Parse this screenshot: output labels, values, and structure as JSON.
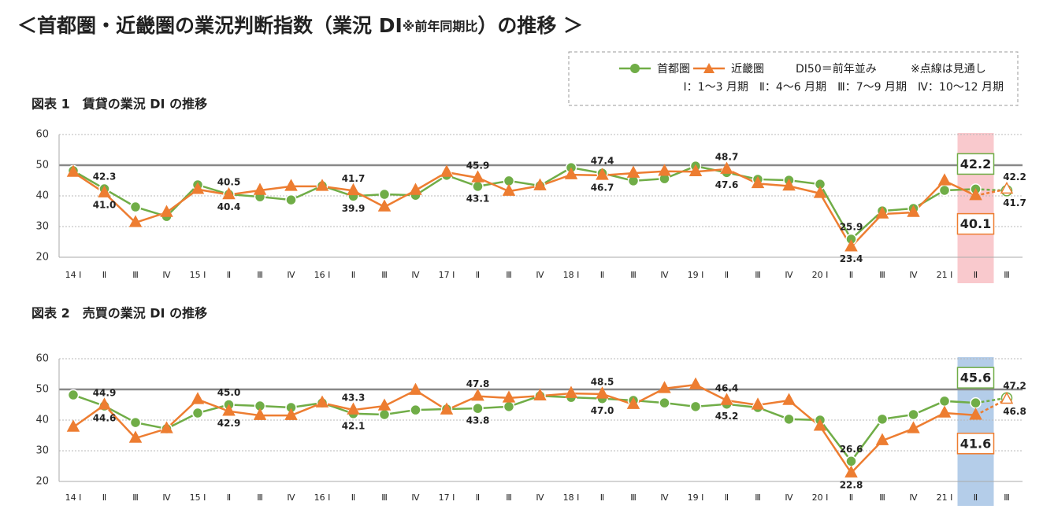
{
  "title_parts": [
    "＜首都圏・近畿圏の業況判断指数（業況 DI",
    "※前年同期比",
    "）の推移 ＞"
  ],
  "legend_notes": [
    "DI50＝前年並み",
    "※点線は見通し",
    "Ⅰ：1〜3 月期　Ⅱ：4〜6 月期　Ⅲ：7〜9 月期　Ⅳ：10〜12 月期"
  ],
  "chart_data": [
    {
      "type": "line",
      "title": "図表 1　賃貸の業況 DI の推移",
      "categories": [
        "14 Ⅰ",
        "Ⅱ",
        "Ⅲ",
        "Ⅳ",
        "15 Ⅰ",
        "Ⅱ",
        "Ⅲ",
        "Ⅳ",
        "16 Ⅰ",
        "Ⅱ",
        "Ⅲ",
        "Ⅳ",
        "17 Ⅰ",
        "Ⅱ",
        "Ⅲ",
        "Ⅳ",
        "18 Ⅰ",
        "Ⅱ",
        "Ⅲ",
        "Ⅳ",
        "19 Ⅰ",
        "Ⅱ",
        "Ⅲ",
        "Ⅳ",
        "20 Ⅰ",
        "Ⅱ",
        "Ⅲ",
        "Ⅳ",
        "21 Ⅰ",
        "Ⅱ",
        "Ⅲ"
      ],
      "ylim": [
        20,
        60
      ],
      "yticks": [
        20,
        30,
        40,
        50,
        60
      ],
      "grid": true,
      "reference_line": 50,
      "highlight": 29,
      "highlight_color": "#f9c9cd",
      "forecast_from": 29,
      "series": [
        {
          "name": "首都圏",
          "color": "#70ad47",
          "marker": "circle",
          "values": [
            48.2,
            42.3,
            36.4,
            33.3,
            43.6,
            40.5,
            39.7,
            38.7,
            43.3,
            39.9,
            40.5,
            40.2,
            46.7,
            43.1,
            44.9,
            43.3,
            49.2,
            47.4,
            44.9,
            45.6,
            49.7,
            47.6,
            45.4,
            45.1,
            43.8,
            25.9,
            35.1,
            35.9,
            41.8,
            42.2,
            41.7
          ],
          "value_labels": [
            null,
            "42.3",
            null,
            null,
            null,
            "40.5",
            null,
            null,
            null,
            "39.9",
            null,
            null,
            null,
            "43.1",
            null,
            null,
            null,
            "47.4",
            null,
            null,
            null,
            "47.6",
            null,
            null,
            null,
            "25.9",
            null,
            null,
            null,
            "42.2",
            "41.7"
          ]
        },
        {
          "name": "近畿圏",
          "color": "#ed7d31",
          "marker": "triangle",
          "values": [
            47.7,
            41.0,
            31.3,
            34.6,
            42.1,
            40.4,
            41.8,
            43.1,
            43.1,
            41.7,
            36.4,
            41.8,
            47.7,
            45.9,
            41.5,
            43.3,
            46.9,
            46.7,
            47.4,
            48.0,
            47.9,
            48.7,
            44.0,
            43.2,
            40.8,
            23.4,
            34.1,
            34.6,
            44.9,
            40.1,
            42.2
          ],
          "value_labels": [
            null,
            "41.0",
            null,
            null,
            null,
            "40.4",
            null,
            null,
            null,
            "41.7",
            null,
            null,
            null,
            "45.9",
            null,
            null,
            null,
            "46.7",
            null,
            null,
            null,
            "48.7",
            null,
            null,
            null,
            "23.4",
            null,
            null,
            null,
            "40.1",
            "42.2"
          ]
        }
      ]
    },
    {
      "type": "line",
      "title": "図表 2　売買の業況 DI の推移",
      "categories": [
        "14 Ⅰ",
        "Ⅱ",
        "Ⅲ",
        "Ⅳ",
        "15 Ⅰ",
        "Ⅱ",
        "Ⅲ",
        "Ⅳ",
        "16 Ⅰ",
        "Ⅱ",
        "Ⅲ",
        "Ⅳ",
        "17 Ⅰ",
        "Ⅱ",
        "Ⅲ",
        "Ⅳ",
        "18 Ⅰ",
        "Ⅱ",
        "Ⅲ",
        "Ⅳ",
        "19 Ⅰ",
        "Ⅱ",
        "Ⅲ",
        "Ⅳ",
        "20 Ⅰ",
        "Ⅱ",
        "Ⅲ",
        "Ⅳ",
        "21 Ⅰ",
        "Ⅱ",
        "Ⅲ"
      ],
      "ylim": [
        20,
        60
      ],
      "yticks": [
        20,
        30,
        40,
        50,
        60
      ],
      "grid": true,
      "reference_line": 50,
      "highlight": 29,
      "highlight_color": "#b4cde9",
      "forecast_from": 29,
      "series": [
        {
          "color": "#70ad47",
          "marker": "circle",
          "values": [
            48.2,
            44.6,
            39.2,
            37.2,
            42.3,
            45.0,
            44.6,
            44.1,
            45.6,
            42.1,
            41.8,
            43.3,
            43.6,
            43.8,
            44.4,
            47.9,
            47.4,
            47.0,
            46.4,
            45.6,
            44.4,
            45.2,
            44.1,
            40.3,
            40.0,
            26.6,
            40.3,
            41.8,
            46.2,
            45.6,
            47.2
          ],
          "value_labels": [
            null,
            "44.6",
            null,
            null,
            null,
            "45.0",
            null,
            null,
            null,
            "42.1",
            null,
            null,
            null,
            "43.8",
            null,
            null,
            null,
            "47.0",
            null,
            null,
            null,
            "45.2",
            null,
            null,
            null,
            "26.6",
            null,
            null,
            null,
            "45.6",
            "47.2"
          ]
        },
        {
          "color": "#ed7d31",
          "marker": "triangle",
          "values": [
            37.7,
            44.9,
            34.1,
            37.2,
            46.7,
            42.9,
            41.5,
            41.5,
            45.6,
            43.3,
            44.6,
            49.7,
            43.3,
            47.8,
            47.2,
            47.9,
            48.7,
            48.5,
            45.1,
            50.3,
            51.5,
            46.4,
            44.9,
            46.4,
            38.0,
            22.8,
            33.3,
            37.2,
            42.3,
            41.6,
            46.8
          ],
          "value_labels": [
            null,
            "44.9",
            null,
            null,
            null,
            "42.9",
            null,
            null,
            null,
            "43.3",
            null,
            null,
            null,
            "47.8",
            null,
            null,
            null,
            "48.5",
            null,
            null,
            null,
            "46.4",
            null,
            null,
            null,
            "22.8",
            null,
            null,
            null,
            "41.6",
            "46.8"
          ]
        }
      ]
    }
  ]
}
